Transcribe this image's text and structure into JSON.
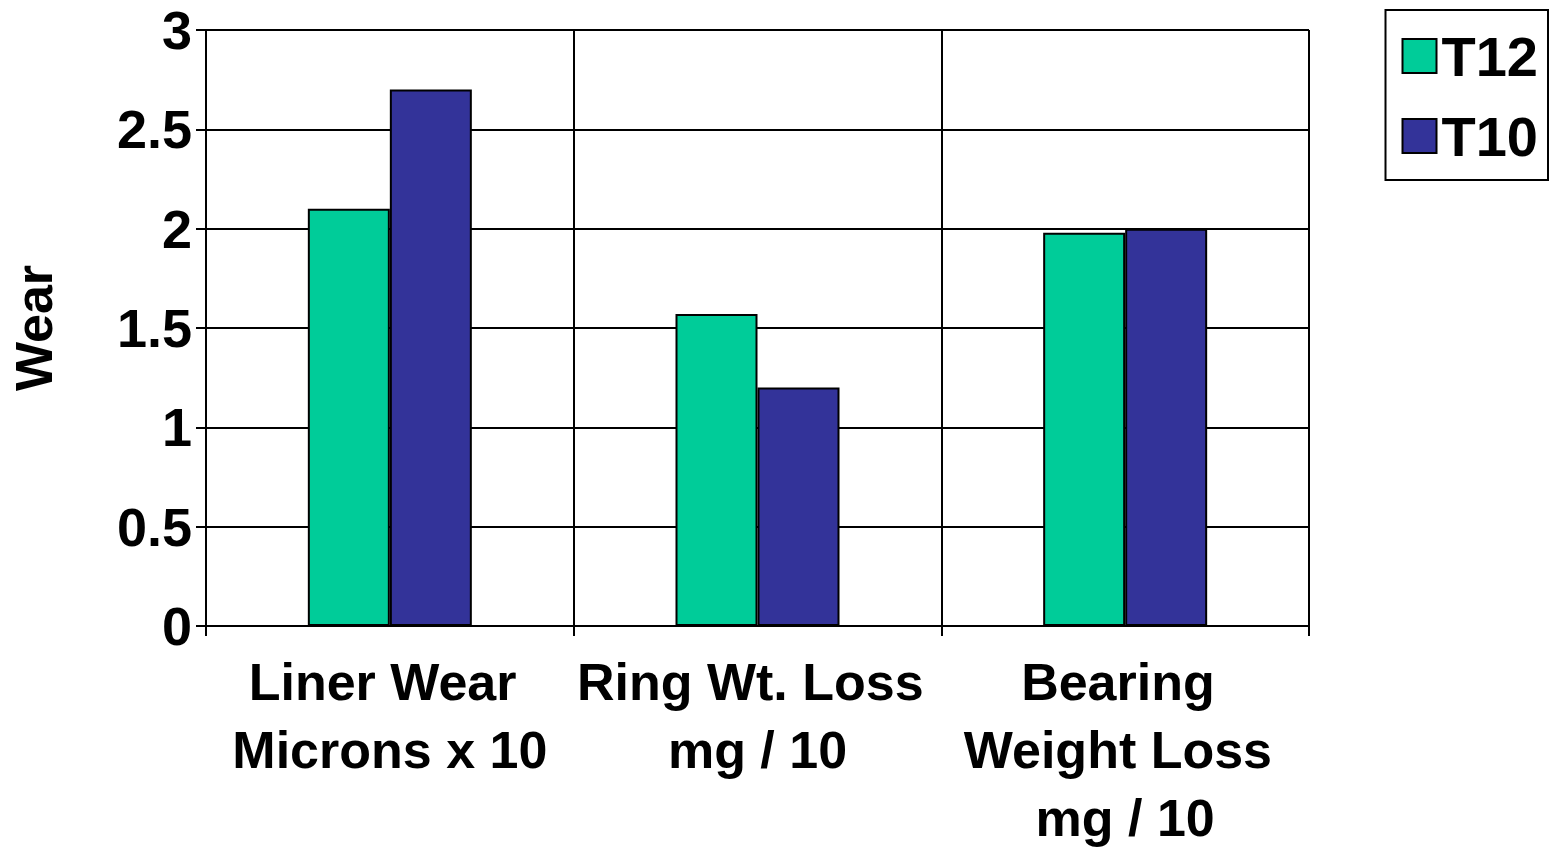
{
  "chart_data": {
    "type": "bar",
    "ylabel": "Wear",
    "categories": [
      "Liner Wear Microns x 10",
      "Ring Wt. Loss mg / 10",
      "Bearing Weight Loss mg / 10"
    ],
    "series": [
      {
        "name": "T12",
        "color": "#00cc99",
        "values": [
          2.1,
          1.57,
          1.98
        ]
      },
      {
        "name": "T10",
        "color": "#333399",
        "values": [
          2.7,
          1.2,
          2.0
        ]
      }
    ],
    "ylim": [
      0,
      3
    ],
    "yticks": [
      0,
      0.5,
      1,
      1.5,
      2,
      2.5,
      3
    ],
    "grid": true,
    "legend": "top right"
  }
}
